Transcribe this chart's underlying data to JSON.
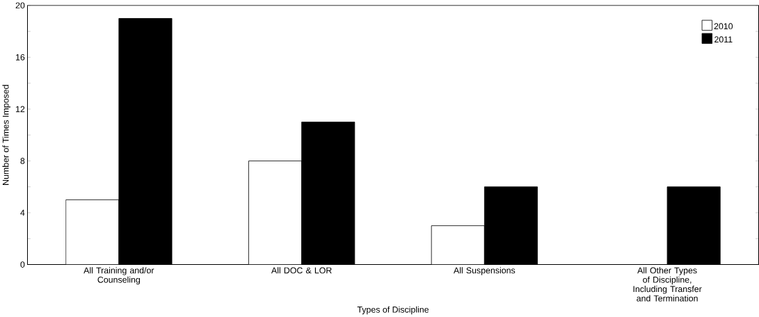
{
  "chart_data": {
    "type": "bar",
    "xlabel": "Types of Discipline",
    "ylabel": "Number of Times Imposed",
    "categories": [
      "All Training and/or Counseling",
      "All DOC & LOR",
      "All Suspensions",
      "All Other Types of Discipline, Including Transfer and Termination"
    ],
    "series": [
      {
        "name": "2010",
        "color": "#ffffff",
        "values": [
          5,
          8,
          3,
          null
        ]
      },
      {
        "name": "2011",
        "color": "#000000",
        "values": [
          19,
          11,
          6,
          6
        ]
      }
    ],
    "ylim": [
      0,
      20
    ],
    "yticks": [
      0,
      {
        "value": 2,
        "label": null
      },
      4,
      {
        "value": 6,
        "label": null
      },
      8,
      {
        "value": 10,
        "label": null
      },
      12,
      {
        "value": 14,
        "label": null
      },
      16,
      {
        "value": 18,
        "label": null
      },
      20
    ],
    "grid": false,
    "legend": "top right"
  }
}
